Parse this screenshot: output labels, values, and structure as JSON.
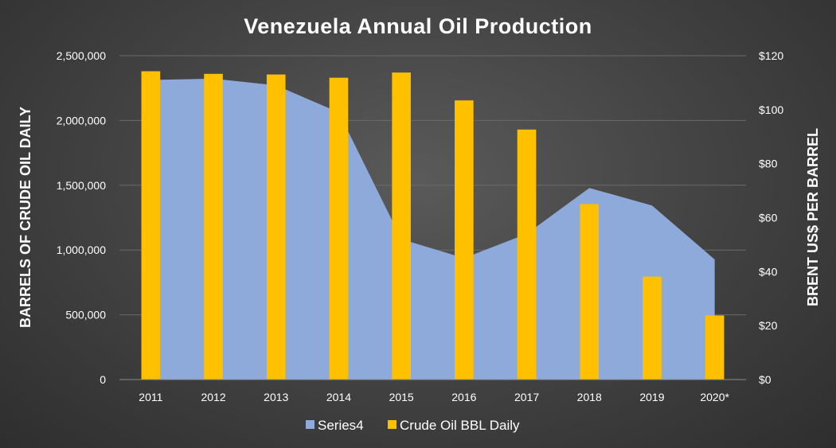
{
  "chart_data": {
    "type": "bar",
    "title": "Venezuela Annual Oil Production",
    "ylabel_left": "BARRELS OF CRUDE OIL DAILY",
    "ylabel_right": "BRENT US$ PER BARREL",
    "categories": [
      "2011",
      "2012",
      "2013",
      "2014",
      "2015",
      "2016",
      "2017",
      "2018",
      "2019",
      "2020*"
    ],
    "left_axis": {
      "min": 0,
      "max": 2500000,
      "ticks": [
        0,
        500000,
        1000000,
        1500000,
        2000000,
        2500000
      ],
      "tick_labels": [
        "0",
        "500,000",
        "1,000,000",
        "1,500,000",
        "2,000,000",
        "2,500,000"
      ]
    },
    "right_axis": {
      "min": 0,
      "max": 120,
      "ticks": [
        0,
        20,
        40,
        60,
        80,
        100,
        120
      ],
      "tick_labels": [
        "$0",
        "$20",
        "$40",
        "$60",
        "$80",
        "$100",
        "$120"
      ]
    },
    "series": [
      {
        "name": "Series4",
        "type": "area",
        "axis": "right",
        "color": "#8eaadb",
        "values": [
          111,
          111.5,
          109,
          99,
          52,
          45,
          54,
          71,
          64.5,
          44.5
        ]
      },
      {
        "name": "Crude Oil BBL Daily",
        "type": "bar",
        "axis": "left",
        "color": "#ffc000",
        "values": [
          2380000,
          2360000,
          2355000,
          2330000,
          2370000,
          2155000,
          1930000,
          1355000,
          795000,
          495000
        ]
      }
    ],
    "grid": true,
    "legend_position": "bottom"
  }
}
